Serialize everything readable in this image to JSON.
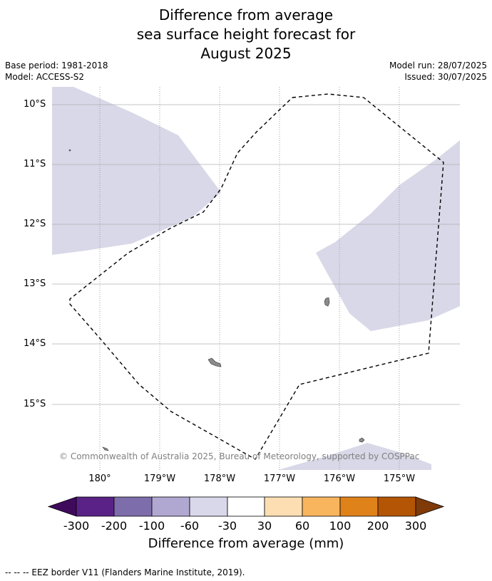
{
  "title": {
    "line1": "Difference from average",
    "line2": "sea surface height forecast for",
    "line3": "August 2025"
  },
  "meta": {
    "base_period": "Base period: 1981-2018",
    "model": "Model: ACCESS-S2",
    "model_run": "Model run: 28/07/2025",
    "issued": "Issued: 30/07/2025"
  },
  "map": {
    "lat_labels": [
      "10°S",
      "11°S",
      "12°S",
      "13°S",
      "14°S",
      "15°S"
    ],
    "lon_labels": [
      "180°",
      "179°W",
      "178°W",
      "177°W",
      "176°W",
      "175°W"
    ],
    "ocean_color": "#ffffff",
    "anomaly_fill_color": "#d8d8e8",
    "eez_border_style": "dashed black",
    "copyright": "© Commonwealth of Australia 2025, Bureau of Meteorology, supported by COSPPac"
  },
  "colorbar": {
    "label": "Difference from average (mm)",
    "tick_labels": [
      "-300",
      "-200",
      "-100",
      "-60",
      "-30",
      "30",
      "60",
      "100",
      "200",
      "300"
    ],
    "colors": [
      "#3f0a5c",
      "#5a2287",
      "#7e6dab",
      "#b0a8d1",
      "#d8d8ea",
      "#ffffff",
      "#fddeb2",
      "#f9b55e",
      "#e0821a",
      "#b35505",
      "#7f3a08"
    ]
  },
  "footnote": "--  --  -- EEZ border V11 (Flanders Marine Institute, 2019)."
}
